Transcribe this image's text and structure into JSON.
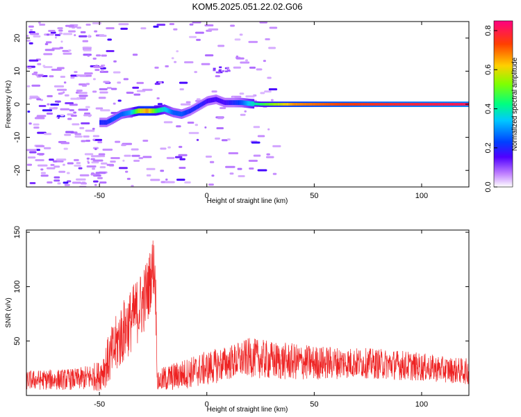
{
  "title": "KOM5.2025.051.22.02.G06",
  "chart_data": [
    {
      "type": "heatmap",
      "xlabel": "Height of straight line (km)",
      "ylabel": "Frequency (Hz)",
      "xlim": [
        -84,
        122
      ],
      "ylim": [
        -25,
        25
      ],
      "x_ticks": [
        -50,
        0,
        50,
        100
      ],
      "y_ticks": [
        20,
        10,
        0,
        -10,
        -20
      ],
      "colorbar": {
        "label": "Normalized spectral amplitude",
        "range": [
          0,
          0.85
        ],
        "ticks": [
          0.0,
          0.2,
          0.4,
          0.6,
          0.8
        ],
        "colors": [
          "#ffffff",
          "#c080ff",
          "#5000ff",
          "#0040ff",
          "#00c8ff",
          "#00ff80",
          "#80ff00",
          "#ffd000",
          "#ff4000",
          "#ff0080"
        ]
      },
      "ridge": {
        "x": [
          -47,
          -44,
          -40,
          -36,
          -32,
          -28,
          -24,
          -20,
          -16,
          -12,
          -8,
          -4,
          0,
          4,
          8,
          12,
          16,
          20,
          25,
          40,
          60,
          80,
          100,
          122
        ],
        "y": [
          -5.5,
          -4.5,
          -3,
          -2.5,
          -2,
          -2,
          -2,
          -1.5,
          -2.5,
          -3,
          -2,
          -0.5,
          1,
          1.5,
          0.5,
          0.5,
          0.5,
          0.2,
          0,
          0,
          0,
          0,
          0,
          0
        ],
        "amplitude": [
          0.25,
          0.3,
          0.3,
          0.35,
          0.6,
          0.7,
          0.5,
          0.4,
          0.3,
          0.3,
          0.25,
          0.25,
          0.2,
          0.2,
          0.2,
          0.25,
          0.3,
          0.4,
          0.5,
          0.7,
          0.75,
          0.78,
          0.8,
          0.82
        ]
      }
    },
    {
      "type": "line",
      "xlabel": "Height of straight line (km)",
      "ylabel": "SNR (v/v)",
      "xlim": [
        -84,
        122
      ],
      "ylim": [
        0,
        152
      ],
      "x_ticks": [
        -50,
        0,
        50,
        100
      ],
      "y_ticks": [
        150,
        100,
        50
      ],
      "series": [
        {
          "color": "#ee2222",
          "envelope": {
            "x": [
              -84,
              -60,
              -50,
              -45,
              -40,
              -35,
              -30,
              -27,
              -25,
              -24,
              -23,
              -20,
              0,
              10,
              20,
              30,
              50,
              70,
              90,
              110,
              122
            ],
            "mean": [
              14,
              15,
              18,
              35,
              55,
              70,
              85,
              100,
              120,
              110,
              12,
              15,
              25,
              30,
              35,
              32,
              30,
              30,
              28,
              24,
              22
            ],
            "spread": [
              9,
              10,
              14,
              25,
              30,
              30,
              32,
              30,
              28,
              30,
              8,
              12,
              16,
              16,
              18,
              18,
              16,
              14,
              14,
              12,
              12
            ]
          }
        }
      ]
    }
  ]
}
